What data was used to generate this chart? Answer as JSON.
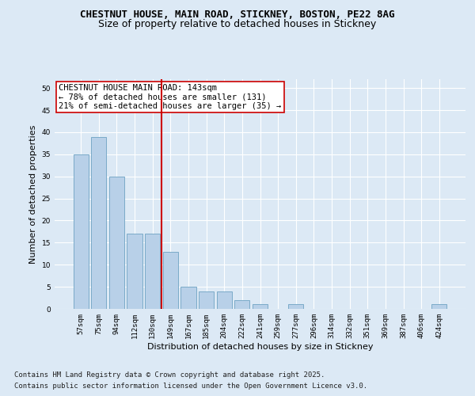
{
  "title_line1": "CHESTNUT HOUSE, MAIN ROAD, STICKNEY, BOSTON, PE22 8AG",
  "title_line2": "Size of property relative to detached houses in Stickney",
  "xlabel": "Distribution of detached houses by size in Stickney",
  "ylabel": "Number of detached properties",
  "categories": [
    "57sqm",
    "75sqm",
    "94sqm",
    "112sqm",
    "130sqm",
    "149sqm",
    "167sqm",
    "185sqm",
    "204sqm",
    "222sqm",
    "241sqm",
    "259sqm",
    "277sqm",
    "296sqm",
    "314sqm",
    "332sqm",
    "351sqm",
    "369sqm",
    "387sqm",
    "406sqm",
    "424sqm"
  ],
  "values": [
    35,
    39,
    30,
    17,
    17,
    13,
    5,
    4,
    4,
    2,
    1,
    0,
    1,
    0,
    0,
    0,
    0,
    0,
    0,
    0,
    1
  ],
  "bar_color": "#b8d0e8",
  "bar_edge_color": "#7aaac8",
  "vline_index": 4.5,
  "vline_color": "#cc0000",
  "annotation_text": "CHESTNUT HOUSE MAIN ROAD: 143sqm\n← 78% of detached houses are smaller (131)\n21% of semi-detached houses are larger (35) →",
  "annotation_box_facecolor": "#ffffff",
  "annotation_box_edgecolor": "#cc0000",
  "ylim": [
    0,
    52
  ],
  "yticks": [
    0,
    5,
    10,
    15,
    20,
    25,
    30,
    35,
    40,
    45,
    50
  ],
  "bg_color": "#dce9f5",
  "grid_color": "#ffffff",
  "footer_line1": "Contains HM Land Registry data © Crown copyright and database right 2025.",
  "footer_line2": "Contains public sector information licensed under the Open Government Licence v3.0.",
  "title_fontsize": 9,
  "subtitle_fontsize": 9,
  "tick_fontsize": 6.5,
  "label_fontsize": 8,
  "annotation_fontsize": 7.5,
  "footer_fontsize": 6.5
}
